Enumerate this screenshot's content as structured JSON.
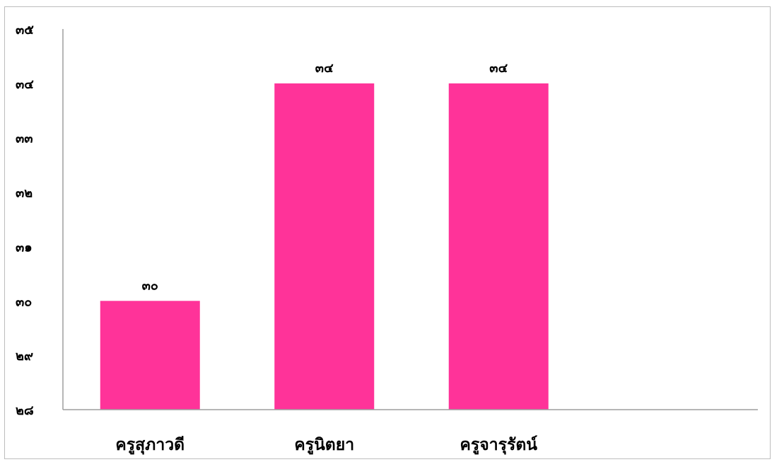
{
  "chart_data": {
    "type": "bar",
    "title": "",
    "xlabel": "",
    "ylabel": "",
    "categories": [
      "ครูสุภาวดี",
      "ครูนิตยา",
      "ครูจารุรัตน์"
    ],
    "series": [
      {
        "values": [
          30,
          34,
          34
        ],
        "data_labels": [
          "๓๐",
          "๓๔",
          "๓๔"
        ]
      }
    ],
    "ylim": [
      28,
      35
    ],
    "yticks": [
      28,
      29,
      30,
      31,
      32,
      33,
      34,
      35
    ],
    "ytick_labels": [
      "๒๘",
      "๒๙",
      "๓๐",
      "๓๑",
      "๓๒",
      "๓๓",
      "๓๔",
      "๓๕"
    ],
    "grid": false,
    "legend": "none",
    "colors": {
      "bar": "#ff3399",
      "axis": "#9e9e9e",
      "frame": "#bdbdbd"
    }
  }
}
